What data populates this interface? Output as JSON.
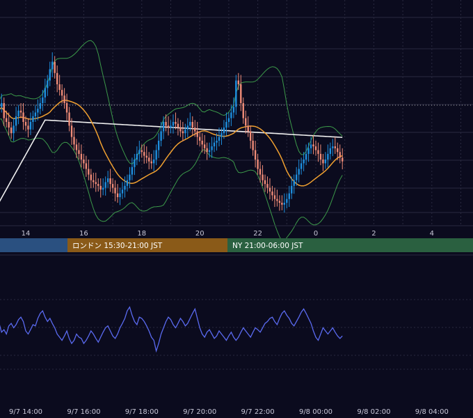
{
  "colors": {
    "background": "#0b0b1e",
    "grid": "#2a2a40",
    "up_candle": "#1e90e0",
    "down_candle": "#f08c78",
    "upper_band": "#3c9a4a",
    "lower_band": "#3c9a4a",
    "mid_band": "#f0a030",
    "long_ma": "#f0f0f0",
    "oscillator": "#5a6af0",
    "session_tokyo": "#2a5080",
    "session_london": "#8a5a18",
    "session_ny": "#2a6040",
    "price_line": "#aaaaaa",
    "session_divider": "#888888"
  },
  "sessions": [
    {
      "name": "tokyo",
      "label": ""
    },
    {
      "name": "london",
      "label": "ロンドン 15:30-21:00 JST"
    },
    {
      "name": "ny",
      "label": "NY 21:00-06:00 JST"
    }
  ],
  "chart_data": {
    "type": "candlestick",
    "title": "",
    "time_axis_top": [
      "14",
      "16",
      "18",
      "20",
      "22",
      "0",
      "2",
      "4"
    ],
    "time_axis_bottom": [
      "9/7 14:00",
      "9/7 16:00",
      "9/7 18:00",
      "9/7 20:00",
      "9/7 22:00",
      "9/8 00:00",
      "9/8 02:00",
      "9/8 04:00"
    ],
    "candles_per_hour": 12,
    "start_hour": 13.0,
    "close": [
      0.55,
      0.58,
      0.6,
      0.52,
      0.5,
      0.47,
      0.44,
      0.48,
      0.53,
      0.56,
      0.55,
      0.5,
      0.48,
      0.46,
      0.5,
      0.53,
      0.55,
      0.57,
      0.6,
      0.63,
      0.68,
      0.72,
      0.78,
      0.82,
      0.76,
      0.7,
      0.67,
      0.64,
      0.6,
      0.55,
      0.48,
      0.42,
      0.38,
      0.35,
      0.33,
      0.3,
      0.28,
      0.25,
      0.22,
      0.19,
      0.18,
      0.17,
      0.16,
      0.14,
      0.15,
      0.18,
      0.2,
      0.17,
      0.15,
      0.12,
      0.1,
      0.12,
      0.14,
      0.16,
      0.19,
      0.22,
      0.26,
      0.3,
      0.33,
      0.35,
      0.34,
      0.32,
      0.31,
      0.29,
      0.28,
      0.3,
      0.35,
      0.4,
      0.45,
      0.5,
      0.48,
      0.47,
      0.48,
      0.5,
      0.49,
      0.47,
      0.45,
      0.44,
      0.46,
      0.48,
      0.5,
      0.47,
      0.45,
      0.42,
      0.4,
      0.38,
      0.36,
      0.34,
      0.35,
      0.37,
      0.39,
      0.4,
      0.42,
      0.44,
      0.47,
      0.5,
      0.52,
      0.55,
      0.58,
      0.72,
      0.7,
      0.6,
      0.52,
      0.48,
      0.45,
      0.4,
      0.35,
      0.3,
      0.25,
      0.22,
      0.19,
      0.17,
      0.15,
      0.13,
      0.11,
      0.09,
      0.08,
      0.07,
      0.06,
      0.07,
      0.09,
      0.12,
      0.16,
      0.19,
      0.22,
      0.25,
      0.28,
      0.3,
      0.33,
      0.36,
      0.38,
      0.37,
      0.35,
      0.33,
      0.3,
      0.28,
      0.3,
      0.33,
      0.36,
      0.37,
      0.36,
      0.34,
      0.31,
      0.29
    ],
    "open": [
      0.52,
      0.55,
      0.58,
      0.6,
      0.52,
      0.5,
      0.47,
      0.44,
      0.48,
      0.53,
      0.56,
      0.55,
      0.5,
      0.48,
      0.46,
      0.5,
      0.53,
      0.55,
      0.57,
      0.6,
      0.63,
      0.68,
      0.72,
      0.78,
      0.82,
      0.76,
      0.7,
      0.67,
      0.64,
      0.6,
      0.55,
      0.48,
      0.42,
      0.38,
      0.35,
      0.33,
      0.3,
      0.28,
      0.25,
      0.22,
      0.19,
      0.18,
      0.17,
      0.16,
      0.14,
      0.15,
      0.18,
      0.2,
      0.17,
      0.15,
      0.12,
      0.1,
      0.12,
      0.14,
      0.16,
      0.19,
      0.22,
      0.26,
      0.3,
      0.33,
      0.35,
      0.34,
      0.32,
      0.31,
      0.29,
      0.28,
      0.3,
      0.35,
      0.4,
      0.45,
      0.5,
      0.48,
      0.47,
      0.48,
      0.5,
      0.49,
      0.47,
      0.45,
      0.44,
      0.46,
      0.48,
      0.5,
      0.47,
      0.45,
      0.42,
      0.4,
      0.38,
      0.36,
      0.34,
      0.35,
      0.37,
      0.39,
      0.4,
      0.42,
      0.44,
      0.47,
      0.5,
      0.52,
      0.55,
      0.58,
      0.72,
      0.7,
      0.6,
      0.52,
      0.48,
      0.45,
      0.4,
      0.35,
      0.3,
      0.25,
      0.22,
      0.19,
      0.17,
      0.15,
      0.13,
      0.11,
      0.09,
      0.08,
      0.07,
      0.06,
      0.07,
      0.09,
      0.12,
      0.16,
      0.19,
      0.22,
      0.25,
      0.28,
      0.3,
      0.33,
      0.36,
      0.38,
      0.37,
      0.35,
      0.33,
      0.3,
      0.28,
      0.3,
      0.33,
      0.36,
      0.37,
      0.36,
      0.34,
      0.31
    ],
    "oscillator": [
      0.7,
      0.62,
      0.48,
      0.52,
      0.45,
      0.58,
      0.62,
      0.55,
      0.6,
      0.68,
      0.72,
      0.65,
      0.5,
      0.45,
      0.52,
      0.6,
      0.58,
      0.7,
      0.78,
      0.82,
      0.72,
      0.65,
      0.7,
      0.62,
      0.55,
      0.45,
      0.4,
      0.35,
      0.42,
      0.5,
      0.38,
      0.3,
      0.35,
      0.45,
      0.4,
      0.38,
      0.3,
      0.35,
      0.42,
      0.5,
      0.45,
      0.38,
      0.32,
      0.4,
      0.48,
      0.55,
      0.58,
      0.5,
      0.42,
      0.38,
      0.45,
      0.55,
      0.62,
      0.7,
      0.82,
      0.88,
      0.75,
      0.65,
      0.6,
      0.72,
      0.7,
      0.65,
      0.58,
      0.5,
      0.4,
      0.35,
      0.18,
      0.3,
      0.45,
      0.55,
      0.65,
      0.72,
      0.68,
      0.6,
      0.55,
      0.62,
      0.7,
      0.65,
      0.58,
      0.62,
      0.7,
      0.78,
      0.85,
      0.7,
      0.55,
      0.45,
      0.4,
      0.48,
      0.52,
      0.45,
      0.38,
      0.42,
      0.5,
      0.45,
      0.4,
      0.35,
      0.42,
      0.48,
      0.4,
      0.35,
      0.4,
      0.48,
      0.55,
      0.5,
      0.45,
      0.4,
      0.48,
      0.55,
      0.52,
      0.48,
      0.55,
      0.62,
      0.65,
      0.7,
      0.72,
      0.65,
      0.6,
      0.7,
      0.78,
      0.82,
      0.75,
      0.7,
      0.62,
      0.58,
      0.65,
      0.72,
      0.8,
      0.85,
      0.78,
      0.7,
      0.62,
      0.5,
      0.4,
      0.35,
      0.45,
      0.55,
      0.5,
      0.45,
      0.5,
      0.55,
      0.48,
      0.42,
      0.38,
      0.42
    ]
  }
}
